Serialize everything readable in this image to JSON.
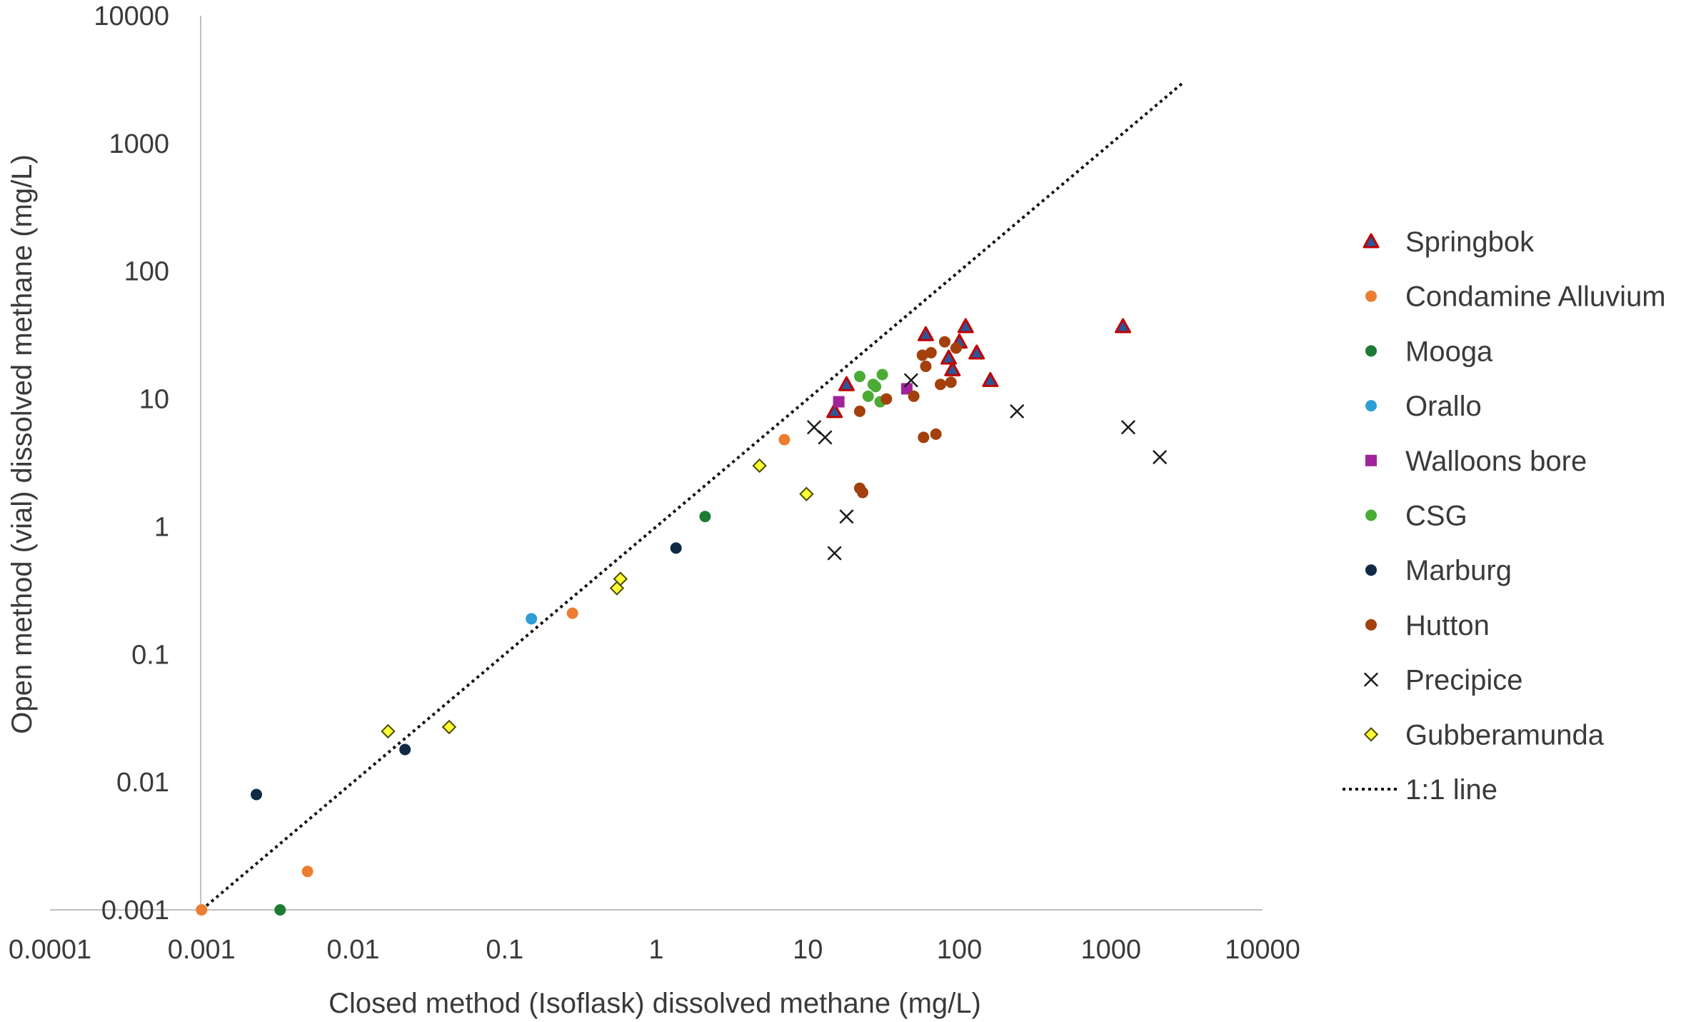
{
  "chart_data": {
    "type": "scatter",
    "title": "",
    "xlabel": "Closed method (Isoflask) dissolved methane (mg/L)",
    "ylabel": "Open method (vial) dissolved methane (mg/L)",
    "xscale": "log",
    "yscale": "log",
    "xlim": [
      0.0001,
      10000
    ],
    "ylim": [
      0.001,
      10000
    ],
    "x_tick_labels": [
      "0.0001",
      "0.001",
      "0.01",
      "0.1",
      "1",
      "10",
      "100",
      "1000",
      "10000"
    ],
    "y_tick_labels": [
      "0.001",
      "0.01",
      "0.1",
      "1",
      "10",
      "100",
      "1000",
      "10000"
    ],
    "grid": false,
    "legend_position": "right",
    "series": [
      {
        "name": "Springbok",
        "marker": "triangle",
        "color": "#2f5597",
        "stroke": "#c00000",
        "points": [
          [
            15,
            8
          ],
          [
            18,
            13
          ],
          [
            60,
            32
          ],
          [
            110,
            37
          ],
          [
            85,
            21
          ],
          [
            90,
            17
          ],
          [
            100,
            28
          ],
          [
            130,
            23
          ],
          [
            160,
            14
          ],
          [
            1200,
            37
          ]
        ]
      },
      {
        "name": "Condamine Alluvium",
        "marker": "circle",
        "color": "#ed7d31",
        "points": [
          [
            0.001,
            0.001
          ],
          [
            0.005,
            0.002
          ],
          [
            0.28,
            0.21
          ],
          [
            7,
            4.8
          ]
        ]
      },
      {
        "name": "Mooga",
        "marker": "circle",
        "color": "#1e7b34",
        "points": [
          [
            0.0033,
            0.001
          ],
          [
            2.1,
            1.2
          ]
        ]
      },
      {
        "name": "Orallo",
        "marker": "circle",
        "color": "#2e9fd6",
        "points": [
          [
            0.15,
            0.19
          ]
        ]
      },
      {
        "name": "Walloons bore",
        "marker": "square",
        "color": "#a1249b",
        "points": [
          [
            16,
            9.5
          ],
          [
            45,
            12
          ]
        ]
      },
      {
        "name": "CSG",
        "marker": "circle",
        "color": "#4aac35",
        "points": [
          [
            22,
            15
          ],
          [
            25,
            10.5
          ],
          [
            27,
            13
          ],
          [
            28,
            12.5
          ],
          [
            30,
            9.5
          ],
          [
            31,
            15.5
          ]
        ]
      },
      {
        "name": "Marburg",
        "marker": "circle",
        "color": "#0f2a45",
        "points": [
          [
            0.0023,
            0.008
          ],
          [
            0.022,
            0.018
          ],
          [
            1.35,
            0.68
          ]
        ]
      },
      {
        "name": "Hutton",
        "marker": "circle",
        "color": "#a3400d",
        "points": [
          [
            22,
            8
          ],
          [
            33,
            10
          ],
          [
            50,
            10.5
          ],
          [
            57,
            22
          ],
          [
            60,
            18
          ],
          [
            65,
            23
          ],
          [
            75,
            13
          ],
          [
            80,
            28
          ],
          [
            88,
            13.5
          ],
          [
            95,
            25
          ],
          [
            58,
            5
          ],
          [
            70,
            5.3
          ],
          [
            22,
            2
          ],
          [
            23,
            1.85
          ]
        ]
      },
      {
        "name": "Precipice",
        "marker": "x",
        "color": "#1b1b1b",
        "points": [
          [
            11,
            6
          ],
          [
            13,
            5
          ],
          [
            15,
            0.62
          ],
          [
            18,
            1.2
          ],
          [
            48,
            14
          ],
          [
            240,
            8
          ],
          [
            1300,
            6
          ],
          [
            2100,
            3.5
          ]
        ]
      },
      {
        "name": "Gubberamunda",
        "marker": "diamond",
        "color": "#ffff33",
        "stroke": "#4a4a00",
        "points": [
          [
            0.017,
            0.025
          ],
          [
            0.043,
            0.027
          ],
          [
            0.55,
            0.33
          ],
          [
            0.58,
            0.39
          ],
          [
            4.8,
            3
          ],
          [
            9.8,
            1.8
          ]
        ]
      },
      {
        "name": "1:1 line",
        "marker": "line",
        "color": "#111111",
        "points": [
          [
            0.001,
            0.001
          ],
          [
            3000,
            3000
          ]
        ]
      }
    ]
  }
}
